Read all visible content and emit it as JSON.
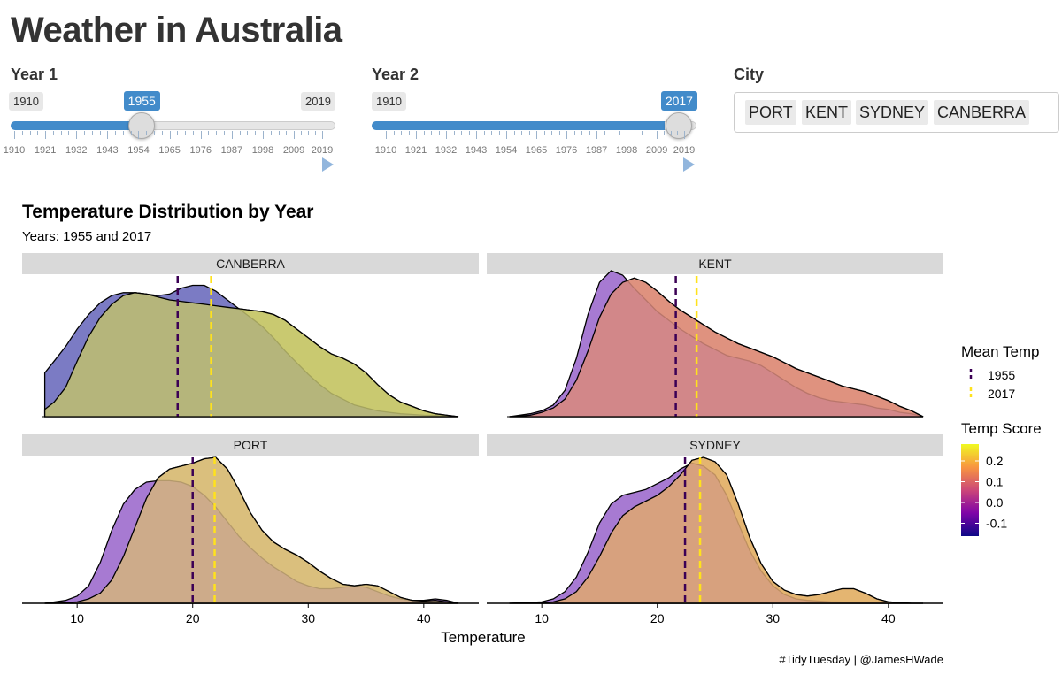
{
  "page_title": "Weather in Australia",
  "slider1": {
    "label": "Year 1",
    "min": 1910,
    "max": 2019,
    "value": 1955,
    "min_label": "1910",
    "max_label": "2019",
    "value_label": "1955"
  },
  "slider2": {
    "label": "Year 2",
    "min": 1910,
    "max": 2019,
    "value": 2017,
    "min_label": "1910",
    "max_label": "2019",
    "value_label": "2017"
  },
  "slider_ticks": [
    "1910",
    "1921",
    "1932",
    "1943",
    "1954",
    "1965",
    "1976",
    "1987",
    "1998",
    "2009",
    "2019"
  ],
  "city": {
    "label": "City",
    "selected": [
      "PORT",
      "KENT",
      "SYDNEY",
      "CANBERRA"
    ]
  },
  "chart_data": {
    "type": "area",
    "title": "Temperature Distribution by Year",
    "subtitle": "Years: 1955 and 2017",
    "xlabel": "Temperature",
    "ylabel": "",
    "xlim": [
      7,
      43
    ],
    "xticks": [
      10,
      20,
      30,
      40
    ],
    "caption": "#TidyTuesday | @JamesHWade",
    "legend_mean": {
      "title": "Mean Temp",
      "items": [
        "1955",
        "2017"
      ],
      "colors": [
        "#3b0055",
        "#ffe21c"
      ]
    },
    "legend_score": {
      "title": "Temp Score",
      "ticks": [
        "0.2",
        "0.1",
        "0.0",
        "-0.1"
      ],
      "colors": [
        "#0d0887",
        "#7e03a8",
        "#cc4778",
        "#f89540",
        "#f0f921"
      ]
    },
    "panels": [
      {
        "city": "CANBERRA",
        "mean_1955": 18.7,
        "mean_2017": 21.6,
        "color_1955": "#7b7bc4",
        "color_2017": "#bfbf6e",
        "edge_2017_fill": "#fafa78",
        "density_1955": {
          "x": [
            7.2,
            8,
            9,
            10,
            11,
            12,
            13,
            14,
            15,
            16,
            17,
            18,
            19,
            20,
            21,
            22,
            23,
            24,
            25,
            26,
            27,
            28,
            29,
            30,
            31,
            32,
            33,
            34,
            35,
            36,
            37,
            38,
            39,
            40,
            41,
            42,
            43
          ],
          "y": [
            0.3,
            0.38,
            0.48,
            0.6,
            0.7,
            0.78,
            0.83,
            0.85,
            0.85,
            0.84,
            0.83,
            0.84,
            0.88,
            0.9,
            0.9,
            0.86,
            0.8,
            0.74,
            0.68,
            0.62,
            0.54,
            0.45,
            0.37,
            0.29,
            0.22,
            0.16,
            0.12,
            0.08,
            0.06,
            0.04,
            0.03,
            0.02,
            0.015,
            0.01,
            0.008,
            0.005,
            0.0
          ]
        },
        "density_2017": {
          "x": [
            7.2,
            8,
            9,
            10,
            11,
            12,
            13,
            14,
            15,
            16,
            17,
            18,
            19,
            20,
            21,
            22,
            23,
            24,
            25,
            26,
            27,
            28,
            29,
            30,
            31,
            32,
            33,
            34,
            35,
            36,
            37,
            38,
            39,
            40,
            41,
            42,
            43
          ],
          "y": [
            0.05,
            0.1,
            0.2,
            0.38,
            0.55,
            0.68,
            0.77,
            0.83,
            0.85,
            0.84,
            0.82,
            0.8,
            0.79,
            0.78,
            0.77,
            0.76,
            0.75,
            0.74,
            0.73,
            0.72,
            0.7,
            0.66,
            0.6,
            0.54,
            0.48,
            0.43,
            0.4,
            0.36,
            0.3,
            0.22,
            0.15,
            0.1,
            0.07,
            0.04,
            0.02,
            0.01,
            0.0
          ]
        }
      },
      {
        "city": "KENT",
        "mean_1955": 21.6,
        "mean_2017": 23.4,
        "color_1955": "#a77ad2",
        "color_2017": "#d98a7c",
        "edge_2017_fill": "#fbc08e",
        "density_1955": {
          "x": [
            7.2,
            9,
            10,
            11,
            12,
            13,
            14,
            15,
            16,
            17,
            18,
            19,
            20,
            21,
            22,
            23,
            24,
            25,
            26,
            27,
            28,
            29,
            30,
            31,
            32,
            33,
            34,
            35,
            36,
            37,
            38,
            39,
            40,
            41,
            42,
            43
          ],
          "y": [
            0.0,
            0.02,
            0.04,
            0.08,
            0.18,
            0.4,
            0.7,
            0.92,
            1.0,
            0.97,
            0.88,
            0.8,
            0.72,
            0.66,
            0.6,
            0.55,
            0.5,
            0.46,
            0.42,
            0.4,
            0.38,
            0.35,
            0.3,
            0.25,
            0.2,
            0.16,
            0.13,
            0.11,
            0.1,
            0.09,
            0.08,
            0.06,
            0.05,
            0.03,
            0.02,
            0.0
          ]
        },
        "density_2017": {
          "x": [
            7.2,
            9,
            10,
            11,
            12,
            13,
            14,
            15,
            16,
            17,
            18,
            19,
            20,
            21,
            22,
            23,
            24,
            25,
            26,
            27,
            28,
            29,
            30,
            31,
            32,
            33,
            34,
            35,
            36,
            37,
            38,
            39,
            40,
            41,
            42,
            43
          ],
          "y": [
            0.0,
            0.01,
            0.03,
            0.06,
            0.12,
            0.25,
            0.45,
            0.68,
            0.84,
            0.92,
            0.95,
            0.92,
            0.86,
            0.79,
            0.73,
            0.68,
            0.63,
            0.58,
            0.54,
            0.5,
            0.47,
            0.44,
            0.41,
            0.37,
            0.33,
            0.3,
            0.27,
            0.24,
            0.21,
            0.19,
            0.17,
            0.14,
            0.11,
            0.07,
            0.04,
            0.0
          ]
        }
      },
      {
        "city": "PORT",
        "mean_1955": 20.0,
        "mean_2017": 21.9,
        "color_1955": "#a77ad2",
        "color_2017": "#d4b47e",
        "edge_2017_fill": "#fafa78",
        "density_1955": {
          "x": [
            7.2,
            9,
            10,
            11,
            12,
            13,
            14,
            15,
            16,
            17,
            18,
            19,
            20,
            21,
            22,
            23,
            24,
            25,
            26,
            27,
            28,
            29,
            30,
            31,
            32,
            33,
            34,
            35,
            36,
            37,
            38,
            39,
            40,
            41,
            42,
            43
          ],
          "y": [
            0.0,
            0.02,
            0.05,
            0.12,
            0.28,
            0.5,
            0.68,
            0.78,
            0.83,
            0.84,
            0.84,
            0.83,
            0.8,
            0.74,
            0.66,
            0.56,
            0.46,
            0.38,
            0.31,
            0.25,
            0.2,
            0.15,
            0.12,
            0.1,
            0.1,
            0.11,
            0.12,
            0.11,
            0.08,
            0.05,
            0.03,
            0.02,
            0.02,
            0.03,
            0.02,
            0.0
          ]
        },
        "density_2017": {
          "x": [
            7.2,
            9,
            10,
            11,
            12,
            13,
            14,
            15,
            16,
            17,
            18,
            19,
            20,
            21,
            22,
            23,
            24,
            25,
            26,
            27,
            28,
            29,
            30,
            31,
            32,
            33,
            34,
            35,
            36,
            37,
            38,
            39,
            40,
            41,
            42,
            43
          ],
          "y": [
            0.0,
            0.005,
            0.01,
            0.03,
            0.07,
            0.16,
            0.32,
            0.52,
            0.72,
            0.86,
            0.92,
            0.94,
            0.96,
            0.99,
            1.0,
            0.92,
            0.78,
            0.62,
            0.5,
            0.42,
            0.37,
            0.33,
            0.28,
            0.22,
            0.17,
            0.13,
            0.12,
            0.13,
            0.12,
            0.08,
            0.04,
            0.02,
            0.015,
            0.02,
            0.01,
            0.0
          ]
        }
      },
      {
        "city": "SYDNEY",
        "mean_1955": 22.4,
        "mean_2017": 23.7,
        "color_1955": "#a77ad2",
        "color_2017": "#dfa870",
        "edge_2017_fill": "#fafa78",
        "density_1955": {
          "x": [
            7.2,
            10,
            11,
            12,
            13,
            14,
            15,
            16,
            17,
            18,
            19,
            20,
            21,
            22,
            23,
            24,
            25,
            26,
            27,
            28,
            29,
            30,
            31,
            32,
            33,
            34,
            35,
            36,
            37,
            38,
            39,
            40,
            41,
            42,
            43
          ],
          "y": [
            0.0,
            0.01,
            0.03,
            0.08,
            0.18,
            0.35,
            0.55,
            0.68,
            0.74,
            0.76,
            0.78,
            0.82,
            0.86,
            0.92,
            0.96,
            0.94,
            0.88,
            0.74,
            0.55,
            0.36,
            0.22,
            0.12,
            0.06,
            0.03,
            0.02,
            0.015,
            0.01,
            0.008,
            0.005,
            0.003,
            0.002,
            0.002,
            0.0,
            0.0,
            0.0
          ]
        },
        "density_2017": {
          "x": [
            7.2,
            10,
            11,
            12,
            13,
            14,
            15,
            16,
            17,
            18,
            19,
            20,
            21,
            22,
            23,
            24,
            25,
            26,
            27,
            28,
            29,
            30,
            31,
            32,
            33,
            34,
            35,
            36,
            37,
            38,
            39,
            40,
            41,
            42,
            43
          ],
          "y": [
            0.0,
            0.005,
            0.01,
            0.03,
            0.08,
            0.18,
            0.32,
            0.48,
            0.6,
            0.66,
            0.7,
            0.74,
            0.8,
            0.88,
            0.98,
            1.0,
            0.97,
            0.88,
            0.68,
            0.45,
            0.27,
            0.15,
            0.09,
            0.06,
            0.05,
            0.06,
            0.08,
            0.1,
            0.1,
            0.07,
            0.03,
            0.01,
            0.005,
            0.0,
            0.0
          ]
        }
      }
    ]
  }
}
